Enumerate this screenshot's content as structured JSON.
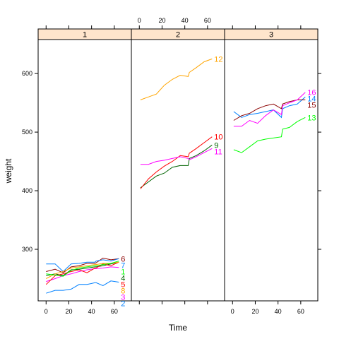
{
  "chart_data": {
    "type": "line",
    "xlabel": "Time",
    "ylabel": "weight",
    "xlim": [
      -7,
      75
    ],
    "ylim": [
      212,
      658
    ],
    "x_ticks": [
      0,
      20,
      40,
      60
    ],
    "y_ticks": [
      300,
      400,
      500,
      600
    ],
    "strip_color": "#ffe5cc",
    "panels": [
      {
        "label": "1",
        "series": [
          {
            "name": "2",
            "color": "#0080ff",
            "x": [
              0,
              8,
              15,
              22,
              29,
              36,
              43,
              44,
              50,
              57,
              64
            ],
            "y": [
              225,
              230,
              230,
              232,
              240,
              240,
              243,
              243,
              238,
              246,
              244
            ]
          },
          {
            "name": "3",
            "color": "#ff00ff",
            "x": [
              0,
              8,
              15,
              22,
              29,
              36,
              43,
              44,
              50,
              57,
              64
            ],
            "y": [
              245,
              250,
              255,
              258,
              262,
              265,
              267,
              267,
              268,
              270,
              269
            ]
          },
          {
            "name": "4",
            "color": "#006400",
            "x": [
              0,
              8,
              15,
              22,
              29,
              36,
              43,
              44,
              50,
              57,
              64
            ],
            "y": [
              255,
              258,
              255,
              265,
              266,
              268,
              270,
              270,
              272,
              275,
              278
            ]
          },
          {
            "name": "5",
            "color": "#ff0000",
            "x": [
              0,
              8,
              15,
              22,
              29,
              36,
              43,
              44,
              50,
              57,
              64
            ],
            "y": [
              240,
              255,
              258,
              262,
              265,
              260,
              268,
              268,
              275,
              272,
              278
            ]
          },
          {
            "name": "6",
            "color": "#8b0000",
            "x": [
              0,
              8,
              15,
              22,
              29,
              36,
              43,
              44,
              50,
              57,
              64
            ],
            "y": [
              262,
              266,
              260,
              270,
              272,
              276,
              276,
              277,
              285,
              282,
              284
            ]
          },
          {
            "name": "7",
            "color": "#0080ff",
            "x": [
              0,
              8,
              15,
              22,
              29,
              36,
              43,
              44,
              50,
              57,
              64
            ],
            "y": [
              275,
              275,
              262,
              275,
              276,
              278,
              278,
              280,
              282,
              280,
              284
            ]
          },
          {
            "name": "8",
            "color": "#ffa500",
            "x": [
              0,
              8,
              15,
              22,
              29,
              36,
              43,
              44,
              50,
              57,
              64
            ],
            "y": [
              250,
              258,
              262,
              268,
              270,
              272,
              274,
              274,
              276,
              276,
              278
            ]
          },
          {
            "name": "1",
            "color": "#00ff00",
            "x": [
              0,
              8,
              15,
              22,
              29,
              36,
              43,
              44,
              50,
              57,
              64
            ],
            "y": [
              258,
              256,
              254,
              264,
              268,
              270,
              272,
              272,
              274,
              276,
              280
            ]
          }
        ]
      },
      {
        "label": "2",
        "series": [
          {
            "name": "9",
            "color": "#006400",
            "x": [
              1,
              8,
              15,
              22,
              29,
              36,
              43,
              44,
              50,
              57,
              64
            ],
            "y": [
              405,
              415,
              425,
              430,
              440,
              443,
              443,
              455,
              460,
              468,
              478
            ]
          },
          {
            "name": "10",
            "color": "#ff0000",
            "x": [
              1,
              8,
              15,
              22,
              29,
              36,
              43,
              44,
              50,
              57,
              64
            ],
            "y": [
              403,
              420,
              432,
              442,
              450,
              460,
              458,
              464,
              472,
              482,
              492
            ]
          },
          {
            "name": "11",
            "color": "#ff00ff",
            "x": [
              1,
              8,
              15,
              22,
              29,
              36,
              43,
              44,
              50,
              57,
              64
            ],
            "y": [
              445,
              445,
              450,
              452,
              455,
              458,
              455,
              453,
              458,
              465,
              472
            ]
          },
          {
            "name": "12",
            "color": "#ffa500",
            "x": [
              1,
              8,
              15,
              22,
              29,
              36,
              43,
              44,
              50,
              57,
              64
            ],
            "y": [
              555,
              560,
              565,
              580,
              590,
              597,
              595,
              602,
              610,
              620,
              625
            ]
          }
        ]
      },
      {
        "label": "3",
        "series": [
          {
            "name": "13",
            "color": "#00ff00",
            "x": [
              1,
              8,
              15,
              22,
              29,
              36,
              43,
              44,
              50,
              57,
              64
            ],
            "y": [
              470,
              465,
              475,
              485,
              488,
              490,
              492,
              505,
              508,
              518,
              525
            ]
          },
          {
            "name": "14",
            "color": "#0080ff",
            "x": [
              1,
              8,
              15,
              22,
              29,
              36,
              43,
              44,
              50,
              57,
              64
            ],
            "y": [
              535,
              525,
              530,
              532,
              535,
              538,
              525,
              540,
              545,
              548,
              560
            ]
          },
          {
            "name": "15",
            "color": "#8b0000",
            "x": [
              1,
              8,
              15,
              22,
              29,
              36,
              43,
              44,
              50,
              57,
              64
            ],
            "y": [
              520,
              528,
              532,
              540,
              545,
              548,
              540,
              548,
              552,
              555,
              555
            ]
          },
          {
            "name": "16",
            "color": "#ff00ff",
            "x": [
              1,
              8,
              15,
              22,
              29,
              36,
              43,
              44,
              50,
              57,
              64
            ],
            "y": [
              510,
              510,
              520,
              515,
              528,
              538,
              530,
              545,
              550,
              555,
              568
            ]
          }
        ]
      }
    ]
  }
}
